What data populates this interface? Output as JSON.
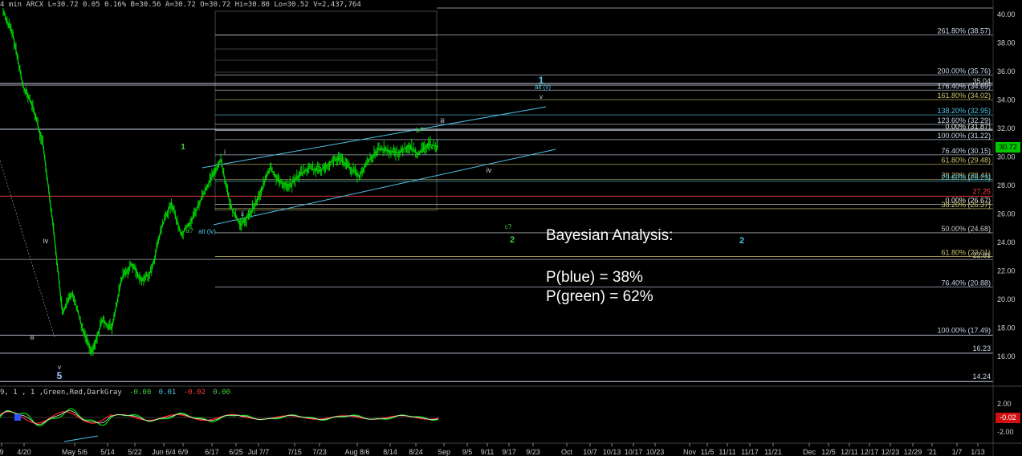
{
  "header": {
    "text": "4 min  ARCX  L=30.72  0.05  0.16%  B=30.56  A=30.72  O=30.72  Hi=30.80  Lo=30.52  V=2,437,764",
    "colors": {
      "label": "#c8c8c8",
      "value": "#00ff00"
    }
  },
  "indicator_header": {
    "prefix": "9, 1 , 1 ,Green,Red,DarkGray",
    "v1": "-0.00",
    "v2": "0.01",
    "v3": "-0.02",
    "v4": "0.00"
  },
  "annotation": {
    "title": "Bayesian Analysis:",
    "line1": "P(blue) = 38%",
    "line2": "P(green) = 62%"
  },
  "price_badge": "30.72",
  "indicator_badge": "-0.02",
  "chart_data": {
    "type": "line",
    "ylim": [
      13.5,
      40.5
    ],
    "price_axis_ticks": [
      "40.00",
      "38.00",
      "36.00",
      "34.00",
      "32.00",
      "30.00",
      "28.00",
      "26.00",
      "24.00",
      "22.00",
      "20.00",
      "18.00",
      "16.00"
    ],
    "indicator_axis_ticks": [
      "2.00",
      "-2.00"
    ],
    "x_ticks": [
      "9",
      "4/20",
      "May 5/6",
      "5/14",
      "5/22",
      "Jun 6/4",
      "6/9",
      "6/17",
      "6/25",
      "Jul 7/7",
      "7/15",
      "7/23",
      "Aug 8/6",
      "8/14",
      "8/24",
      "Sep",
      "9/5",
      "9/11",
      "9/17",
      "9/23",
      "Oct",
      "10/7",
      "10/13",
      "10/17",
      "10/23",
      "Nov",
      "11/5",
      "11/11",
      "11/17",
      "11/21",
      "Dec",
      "12/5",
      "12/11",
      "12/17",
      "12/23",
      "12/29",
      "'21",
      "1/7",
      "1/13"
    ],
    "levels_left": [
      {
        "label": "16.23",
        "value": 16.23
      },
      {
        "label": "14.24",
        "value": 14.24
      },
      {
        "label": "100.00% (17.49)",
        "value": 17.49
      },
      {
        "label": "27.25",
        "value": 27.25
      }
    ],
    "levels_right_top": [
      {
        "label": "261.80% (38.57)",
        "value": 38.57
      },
      {
        "label": "200.00% (35.76)",
        "value": 35.76
      },
      {
        "label": "35.04",
        "value": 35.04
      },
      {
        "label": "176.40% (34.69)",
        "value": 34.69
      },
      {
        "label": "161.80% (34.02)",
        "value": 34.02
      },
      {
        "label": "138.20% (32.95)",
        "value": 32.95
      },
      {
        "label": "123.60% (32.29)",
        "value": 32.29
      },
      {
        "label": "0.00% (31.87)",
        "value": 31.87
      },
      {
        "label": "100.00% (31.22)",
        "value": 31.22
      },
      {
        "label": "76.40% (30.15)",
        "value": 30.15
      },
      {
        "label": "61.80% (29.48)",
        "value": 29.48
      },
      {
        "label": "38.20% (28.41)",
        "value": 28.41
      },
      {
        "label": "23.60% (28.29)",
        "value": 28.29
      },
      {
        "label": "0.00% (26.67)",
        "value": 26.67
      },
      {
        "label": "38.20% (26.37)",
        "value": 26.37
      },
      {
        "label": "50.00% (24.68)",
        "value": 24.68
      },
      {
        "label": "61.80% (23.01)",
        "value": 23.01
      },
      {
        "label": "22.81",
        "value": 22.81
      },
      {
        "label": "76.40% (20.88)",
        "value": 20.88
      }
    ],
    "wave_labels": [
      {
        "text": "1",
        "color": "#3fd13f"
      },
      {
        "text": "i",
        "color": "#cfd8e8"
      },
      {
        "text": "ii",
        "color": "#cfd8e8"
      },
      {
        "text": "iii",
        "color": "#cfd8e8"
      },
      {
        "text": "iv",
        "color": "#cfd8e8"
      },
      {
        "text": "v",
        "color": "#cfd8e8"
      },
      {
        "text": "5",
        "color": "#9fc6ff"
      },
      {
        "text": "iii",
        "color": "#cfd8e8"
      },
      {
        "text": "iv",
        "color": "#cfd8e8"
      },
      {
        "text": "v",
        "color": "#cfd8e8"
      },
      {
        "text": "1",
        "color": "#4ec3e6"
      },
      {
        "text": "alt (v)",
        "color": "#4ec3e6"
      },
      {
        "text": "b?",
        "color": "#3fd13f"
      },
      {
        "text": "a?",
        "color": "#3fd13f"
      },
      {
        "text": "alt (iv)",
        "color": "#4ec3e6"
      },
      {
        "text": "c?",
        "color": "#3fd13f"
      },
      {
        "text": "2",
        "color": "#3fd13f"
      },
      {
        "text": "2",
        "color": "#4ec3e6"
      }
    ],
    "price_series": [
      {
        "x": 0,
        "y": 40.2
      },
      {
        "x": 1,
        "y": 38.5
      },
      {
        "x": 2,
        "y": 35.0
      },
      {
        "x": 3,
        "y": 33.5
      },
      {
        "x": 4,
        "y": 31.0
      },
      {
        "x": 5,
        "y": 25.5
      },
      {
        "x": 6,
        "y": 19.0
      },
      {
        "x": 7,
        "y": 20.5
      },
      {
        "x": 8,
        "y": 18.0
      },
      {
        "x": 9,
        "y": 16.3
      },
      {
        "x": 10,
        "y": 18.5
      },
      {
        "x": 11,
        "y": 18.0
      },
      {
        "x": 12,
        "y": 21.5
      },
      {
        "x": 13,
        "y": 22.5
      },
      {
        "x": 14,
        "y": 21.3
      },
      {
        "x": 15,
        "y": 22.0
      },
      {
        "x": 16,
        "y": 25.0
      },
      {
        "x": 17,
        "y": 26.8
      },
      {
        "x": 18,
        "y": 24.5
      },
      {
        "x": 19,
        "y": 25.5
      },
      {
        "x": 20,
        "y": 27.0
      },
      {
        "x": 21,
        "y": 28.5
      },
      {
        "x": 22,
        "y": 29.8
      },
      {
        "x": 23,
        "y": 26.5
      },
      {
        "x": 24,
        "y": 25.2
      },
      {
        "x": 25,
        "y": 26.0
      },
      {
        "x": 26,
        "y": 27.5
      },
      {
        "x": 27,
        "y": 29.2
      },
      {
        "x": 28,
        "y": 28.2
      },
      {
        "x": 29,
        "y": 28.0
      },
      {
        "x": 30,
        "y": 28.8
      },
      {
        "x": 31,
        "y": 29.2
      },
      {
        "x": 32,
        "y": 29.0
      },
      {
        "x": 33,
        "y": 29.6
      },
      {
        "x": 34,
        "y": 29.9
      },
      {
        "x": 35,
        "y": 29.3
      },
      {
        "x": 36,
        "y": 28.6
      },
      {
        "x": 37,
        "y": 29.8
      },
      {
        "x": 38,
        "y": 30.6
      },
      {
        "x": 39,
        "y": 30.4
      },
      {
        "x": 40,
        "y": 30.3
      },
      {
        "x": 41,
        "y": 30.8
      },
      {
        "x": 42,
        "y": 30.2
      },
      {
        "x": 43,
        "y": 30.9
      },
      {
        "x": 44,
        "y": 30.72
      }
    ]
  }
}
